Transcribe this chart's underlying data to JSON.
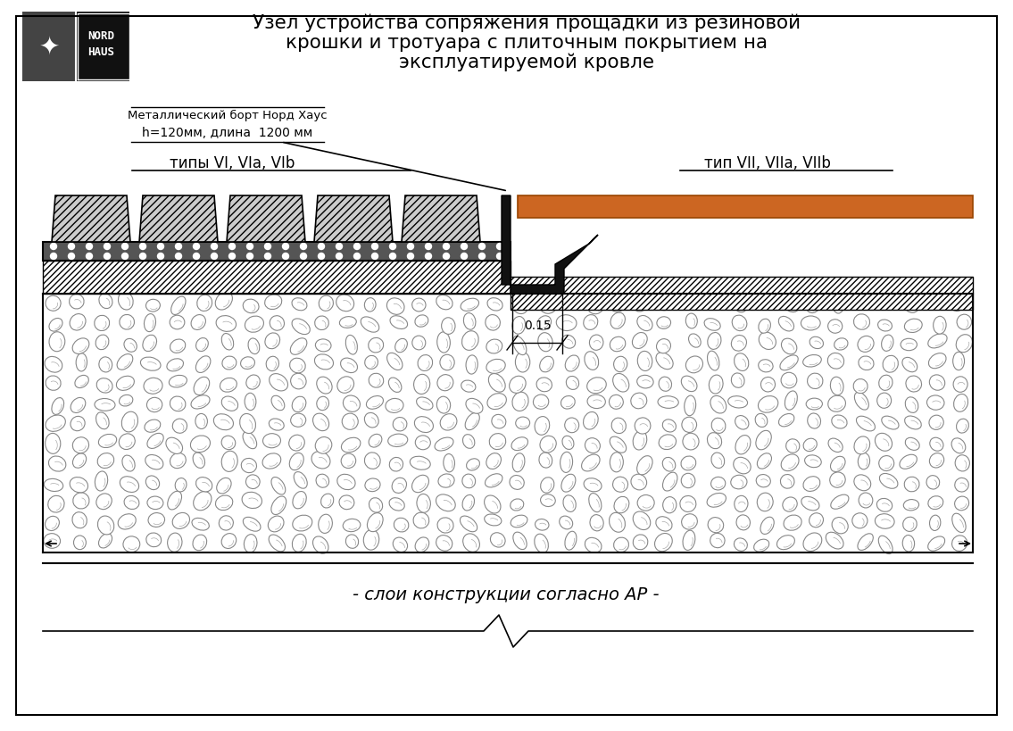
{
  "title_line1": "Узел устройства сопряжения прощадки из резиновой",
  "title_line2": "крошки и тротуара с плиточным покрытием на",
  "title_line3": "эксплуатируемой кровле",
  "label_metal": "Металлический борт Норд Хаус",
  "label_metal2": "h=120мм, длина  1200 мм",
  "label_left": "типы VI, VIa, VIb",
  "label_right": "тип VII, VIIa, VIIb",
  "label_bottom": "- слои конструкции согласно АР -",
  "label_dim": "0.15",
  "bg_color": "#ffffff",
  "orange_color": "#cc6622",
  "logo_bg": "#111111",
  "logo_tree_bg": "#444444",
  "dots_fill": "#555555",
  "metal_fill": "#111111",
  "stone_edge": "#888888",
  "hatch_face": "#e8e8e8",
  "tile_face": "#c8c8c8"
}
